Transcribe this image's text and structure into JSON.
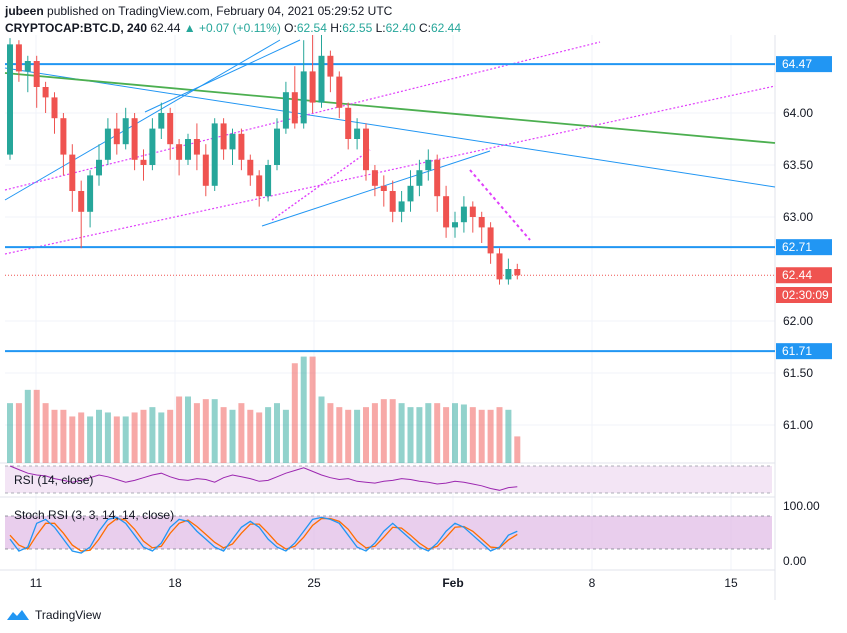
{
  "header": {
    "user": "jubeen",
    "published_text": "published on TradingView.com, February 04, 2021 05:29:52 UTC",
    "symbol": "CRYPTOCAP:BTC.D, 240",
    "last": "62.44",
    "change_arrow": "▲",
    "change": "+0.07 (+0.11%)",
    "o_label": "O:",
    "o": "62.54",
    "h_label": "H:",
    "h": "62.55",
    "l_label": "L:",
    "l": "62.40",
    "c_label": "C:",
    "c": "62.44"
  },
  "footer": {
    "brand": "TradingView",
    "logo_icon": "tradingview-logo-icon"
  },
  "colors": {
    "up": "#26a69a",
    "down": "#ef5350",
    "blue_line": "#2196f3",
    "green_line": "#4caf50",
    "magenta": "#e040fb",
    "rsi": "#9c27b0",
    "stoch_k": "#2196f3",
    "stoch_d": "#ff6d00",
    "band": "#e1bee7"
  },
  "chart_data": {
    "type": "candlestick",
    "price_axis": {
      "ticks": [
        "64.00",
        "63.50",
        "63.00",
        "62.00",
        "61.50",
        "61.00"
      ],
      "range": [
        60.6,
        64.75
      ]
    },
    "time_axis": {
      "ticks": [
        "11",
        "18",
        "25",
        "Feb",
        "8",
        "15"
      ]
    },
    "price_labels": [
      {
        "text": "64.47",
        "value": 64.47,
        "kind": "level"
      },
      {
        "text": "62.71",
        "value": 62.71,
        "kind": "level"
      },
      {
        "text": "62.44",
        "value": 62.44,
        "kind": "last"
      },
      {
        "text": "02:30:09",
        "kind": "countdown"
      },
      {
        "text": "61.71",
        "value": 61.71,
        "kind": "level"
      }
    ],
    "horizontal_levels": [
      64.47,
      62.71,
      61.71
    ],
    "last_price": 62.44,
    "candles": [
      [
        63.6,
        64.66,
        64.72,
        63.55
      ],
      [
        64.66,
        64.4,
        64.7,
        64.3
      ],
      [
        64.4,
        64.5,
        64.55,
        64.2
      ],
      [
        64.5,
        64.25,
        64.55,
        64.05
      ],
      [
        64.25,
        64.15,
        64.3,
        64.0
      ],
      [
        64.15,
        63.95,
        64.2,
        63.8
      ],
      [
        63.95,
        63.6,
        64.0,
        63.4
      ],
      [
        63.6,
        63.25,
        63.7,
        63.05
      ],
      [
        63.25,
        63.05,
        63.35,
        62.7
      ],
      [
        63.05,
        63.4,
        63.45,
        62.9
      ],
      [
        63.4,
        63.55,
        63.7,
        63.3
      ],
      [
        63.55,
        63.85,
        63.95,
        63.5
      ],
      [
        63.85,
        63.7,
        64.0,
        63.6
      ],
      [
        63.7,
        63.95,
        64.05,
        63.65
      ],
      [
        63.95,
        63.55,
        64.0,
        63.45
      ],
      [
        63.55,
        63.5,
        63.65,
        63.35
      ],
      [
        63.5,
        63.85,
        63.95,
        63.45
      ],
      [
        63.85,
        64.0,
        64.1,
        63.75
      ],
      [
        64.0,
        63.7,
        64.05,
        63.55
      ],
      [
        63.7,
        63.55,
        63.75,
        63.4
      ],
      [
        63.55,
        63.75,
        63.8,
        63.5
      ],
      [
        63.75,
        63.6,
        63.9,
        63.45
      ],
      [
        63.6,
        63.3,
        63.7,
        63.2
      ],
      [
        63.3,
        63.9,
        63.95,
        63.25
      ],
      [
        63.9,
        63.65,
        63.95,
        63.55
      ],
      [
        63.65,
        63.8,
        63.85,
        63.5
      ],
      [
        63.8,
        63.55,
        63.85,
        63.45
      ],
      [
        63.55,
        63.4,
        63.6,
        63.3
      ],
      [
        63.4,
        63.2,
        63.45,
        63.1
      ],
      [
        63.2,
        63.5,
        63.55,
        63.15
      ],
      [
        63.5,
        63.85,
        63.95,
        63.45
      ],
      [
        63.85,
        64.2,
        64.3,
        63.8
      ],
      [
        64.2,
        63.9,
        64.45,
        63.85
      ],
      [
        63.9,
        64.4,
        64.7,
        63.85
      ],
      [
        64.4,
        64.1,
        64.75,
        64.0
      ],
      [
        64.1,
        64.55,
        64.75,
        64.05
      ],
      [
        64.55,
        64.35,
        64.6,
        64.2
      ],
      [
        64.35,
        64.05,
        64.4,
        63.95
      ],
      [
        64.05,
        63.75,
        64.1,
        63.65
      ],
      [
        63.75,
        63.85,
        63.95,
        63.65
      ],
      [
        63.85,
        63.45,
        63.9,
        63.35
      ],
      [
        63.45,
        63.3,
        63.5,
        63.2
      ],
      [
        63.3,
        63.25,
        63.4,
        63.1
      ],
      [
        63.25,
        63.05,
        63.35,
        62.95
      ],
      [
        63.05,
        63.15,
        63.25,
        62.95
      ],
      [
        63.15,
        63.3,
        63.45,
        63.05
      ],
      [
        63.3,
        63.45,
        63.55,
        63.2
      ],
      [
        63.45,
        63.55,
        63.65,
        63.35
      ],
      [
        63.55,
        63.2,
        63.6,
        63.05
      ],
      [
        63.2,
        62.9,
        63.3,
        62.8
      ],
      [
        62.9,
        62.95,
        63.05,
        62.8
      ],
      [
        62.95,
        63.1,
        63.2,
        62.85
      ],
      [
        63.1,
        63.0,
        63.15,
        62.85
      ],
      [
        63.0,
        62.9,
        63.05,
        62.75
      ],
      [
        62.9,
        62.65,
        62.95,
        62.55
      ],
      [
        62.65,
        62.4,
        62.7,
        62.35
      ],
      [
        62.4,
        62.5,
        62.6,
        62.35
      ],
      [
        62.5,
        62.44,
        62.55,
        62.4
      ]
    ],
    "volume": [
      0.45,
      0.45,
      0.55,
      0.55,
      0.45,
      0.4,
      0.4,
      0.35,
      0.38,
      0.35,
      0.4,
      0.38,
      0.35,
      0.35,
      0.38,
      0.4,
      0.42,
      0.38,
      0.4,
      0.5,
      0.5,
      0.45,
      0.48,
      0.48,
      0.42,
      0.4,
      0.45,
      0.4,
      0.38,
      0.42,
      0.45,
      0.4,
      0.75,
      0.8,
      0.8,
      0.5,
      0.45,
      0.42,
      0.4,
      0.4,
      0.42,
      0.45,
      0.48,
      0.48,
      0.45,
      0.42,
      0.42,
      0.45,
      0.45,
      0.42,
      0.45,
      0.44,
      0.42,
      0.4,
      0.4,
      0.42,
      0.4,
      0.2
    ],
    "rsi": {
      "label": "RSI (14, close)",
      "values": [
        60,
        56,
        52,
        50,
        49,
        46,
        44,
        42,
        44,
        47,
        50,
        48,
        45,
        42,
        44,
        47,
        50,
        52,
        48,
        45,
        44,
        46,
        45,
        42,
        47,
        50,
        48,
        46,
        43,
        44,
        48,
        52,
        55,
        58,
        54,
        50,
        47,
        45,
        46,
        43,
        42,
        41,
        43,
        44,
        46,
        45,
        43,
        42,
        40,
        41,
        43,
        42,
        40,
        38,
        35,
        33,
        36,
        37
      ]
    },
    "stoch_rsi": {
      "label": "Stoch RSI (3, 3, 14, 14, close)",
      "axis_ticks": [
        "100.00",
        "0.00"
      ],
      "k": [
        40,
        10,
        20,
        80,
        90,
        70,
        40,
        10,
        5,
        20,
        60,
        90,
        95,
        80,
        50,
        20,
        10,
        30,
        70,
        90,
        85,
        60,
        40,
        20,
        10,
        40,
        70,
        85,
        70,
        40,
        20,
        10,
        30,
        60,
        90,
        95,
        90,
        80,
        50,
        20,
        10,
        30,
        60,
        80,
        60,
        40,
        20,
        10,
        30,
        60,
        80,
        70,
        50,
        30,
        10,
        20,
        50,
        60
      ],
      "d": [
        50,
        25,
        15,
        50,
        80,
        80,
        55,
        25,
        10,
        12,
        40,
        75,
        92,
        88,
        65,
        35,
        18,
        22,
        55,
        80,
        88,
        72,
        52,
        32,
        18,
        28,
        55,
        78,
        78,
        55,
        30,
        15,
        22,
        45,
        75,
        92,
        92,
        85,
        65,
        35,
        18,
        22,
        45,
        70,
        68,
        50,
        30,
        15,
        22,
        45,
        70,
        72,
        60,
        40,
        20,
        18,
        38,
        52
      ]
    },
    "annotations": [
      {
        "type": "trendline",
        "color": "blue",
        "desc": "long descending from top-left"
      },
      {
        "type": "trendline",
        "color": "green",
        "desc": "descending across chart"
      },
      {
        "type": "channel",
        "color": "magenta",
        "style": "dotted"
      },
      {
        "type": "trendline",
        "color": "blue",
        "desc": "short rising support"
      }
    ]
  }
}
